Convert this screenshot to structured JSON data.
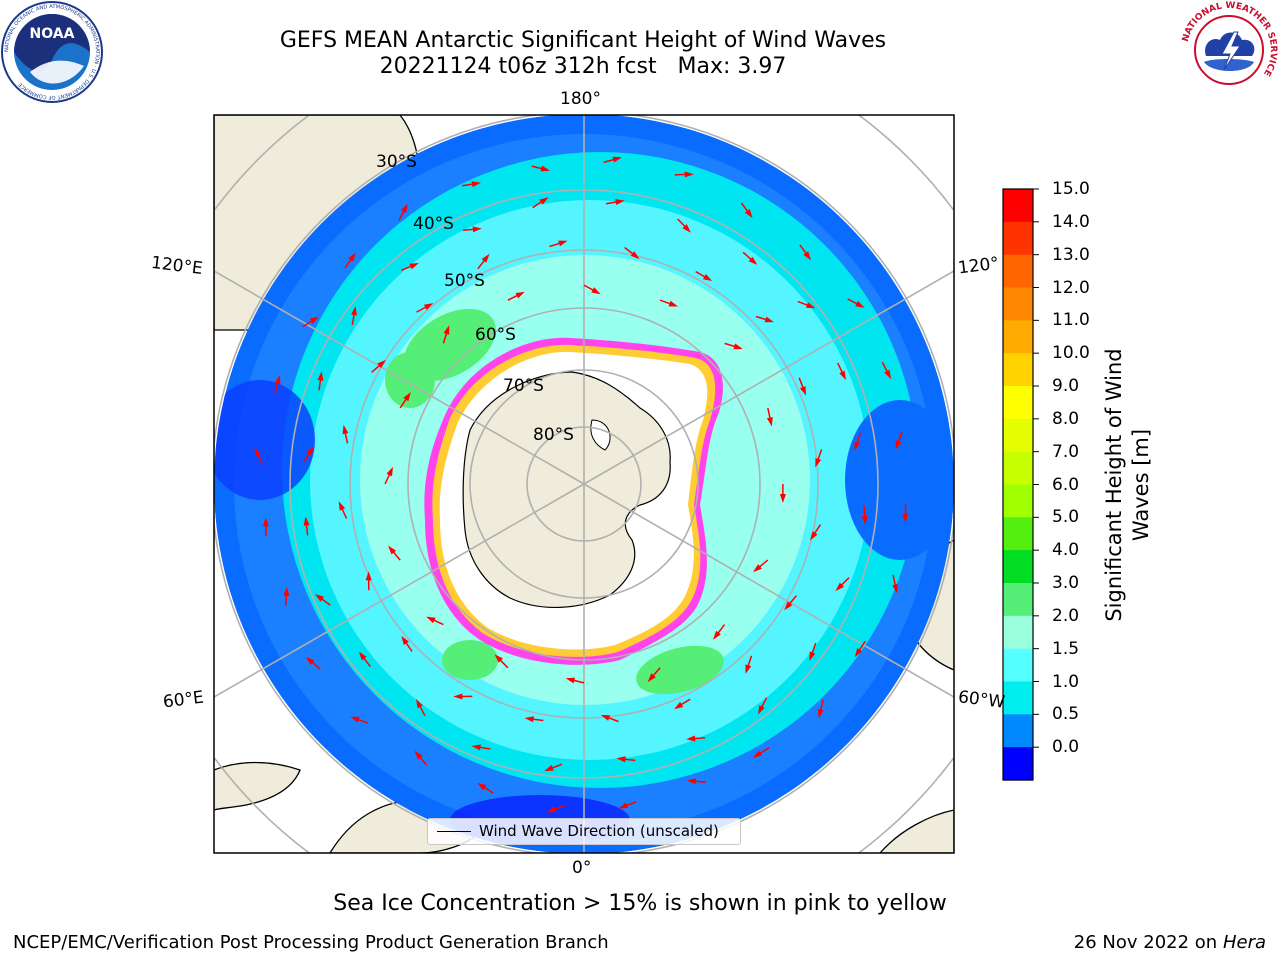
{
  "title": {
    "line1": "GEFS MEAN Antarctic Significant Height of Wind Waves",
    "line2": "20221124 t06z 312h fcst   Max: 3.97"
  },
  "logos": {
    "left": {
      "icon": "noaa-logo-icon",
      "text": "NOAA",
      "ring_text": "NATIONAL OCEANIC AND ATMOSPHERIC ADMINISTRATION · U.S. DEPARTMENT OF COMMERCE"
    },
    "right": {
      "icon": "nws-logo-icon",
      "ring_text": "NATIONAL WEATHER SERVICE"
    }
  },
  "map": {
    "projection": "south-polar-stereographic",
    "lon_labels": [
      "180°",
      "120°E",
      "120°",
      "60°E",
      "60°W",
      "0°"
    ],
    "lat_labels": [
      "30°S",
      "40°S",
      "50°S",
      "60°S",
      "70°S",
      "80°S"
    ],
    "colors": {
      "land": "#efecdc",
      "ice_edge_pink": "#ff44ee",
      "ice_edge_yellow": "#ffcc33",
      "arrows": "#ff0000"
    },
    "legend": {
      "label": "Wind Wave Direction (unscaled)"
    }
  },
  "colorbar": {
    "label": "Significant Height of Wind Waves [m]",
    "label_line1": "Significant Height of Wind",
    "label_line2": "Waves [m]",
    "ticks": [
      "15.0",
      "14.0",
      "13.0",
      "12.0",
      "11.0",
      "10.0",
      "9.0",
      "8.0",
      "7.0",
      "6.0",
      "5.0",
      "4.0",
      "3.0",
      "2.0",
      "1.5",
      "1.0",
      "0.5",
      "0.0"
    ],
    "colors_top_to_bottom": [
      "#ff0000",
      "#ff3300",
      "#ff6600",
      "#ff8800",
      "#ffaa00",
      "#ffd200",
      "#ffff00",
      "#e6ff00",
      "#c8ff00",
      "#a0ff00",
      "#55ee11",
      "#00dd22",
      "#55ee77",
      "#99ffdd",
      "#55ffff",
      "#00eeee",
      "#0088ff",
      "#0000ff"
    ]
  },
  "note": "Sea Ice Concentration > 15% is shown in pink to yellow",
  "footer": {
    "left": "NCEP/EMC/Verification Post Processing Product Generation Branch",
    "date": "26 Nov 2022 on",
    "host": "Hera"
  }
}
